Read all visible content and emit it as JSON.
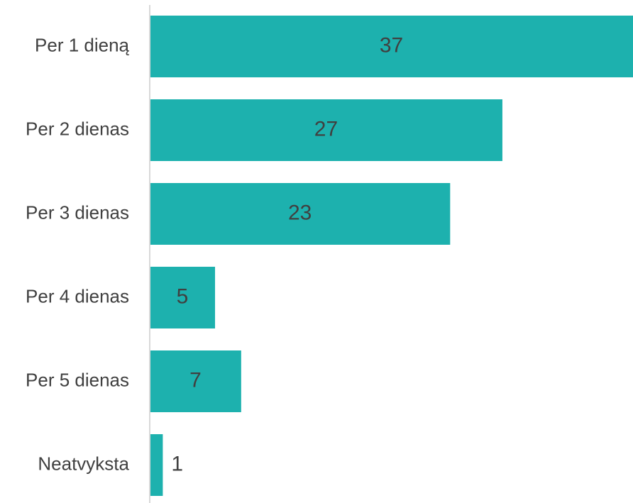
{
  "chart_data": {
    "type": "bar",
    "orientation": "horizontal",
    "categories": [
      "Per 1 dieną",
      "Per 2 dienas",
      "Per 3 dienas",
      "Per 4 dienas",
      "Per 5 dienas",
      "Neatvyksta"
    ],
    "values": [
      37,
      27,
      23,
      5,
      7,
      1
    ],
    "data_labels": [
      "37",
      "27",
      "23",
      "5",
      "7",
      "1"
    ],
    "title": "",
    "xlabel": "",
    "ylabel": "",
    "xlim": [
      0,
      37
    ],
    "grid": false,
    "legend": "none",
    "colors": {
      "bar": "#1DB1AE",
      "axis": "#D9D9D9",
      "label_text": "#404040",
      "value_text": "#404040"
    }
  }
}
